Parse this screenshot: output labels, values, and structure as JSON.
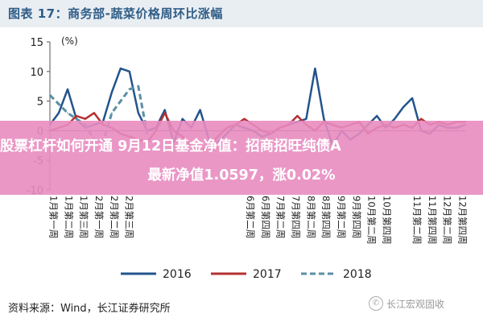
{
  "figure": {
    "title": "图表 17：商务部-蔬菜价格周环比涨幅",
    "unit": "(%)",
    "source": "资料来源：Wind，长江证券研究所",
    "watermark": "长江宏观固收"
  },
  "overlay": {
    "line1": "股票杠杆如何开通 9月12日基金净值：招商招旺纯债A",
    "line2": "最新净值1.0597，涨0.02%"
  },
  "colors": {
    "s2016": "#23548c",
    "s2017": "#b53031",
    "s2018": "#5a8fa4",
    "title": "#2f5d86",
    "overlay": "#e88cc0"
  },
  "chart_data": {
    "type": "line",
    "title": "商务部-蔬菜价格周环比涨幅",
    "ylabel": "(%)",
    "ylim": [
      -10,
      15
    ],
    "yticks": [
      15,
      10,
      5,
      0,
      -5,
      -10
    ],
    "legend_position": "bottom",
    "x_tick_labels": [
      "1月第一周",
      "1月第二周",
      "1月第三周",
      "2月第一周",
      "2月第二周",
      "2月第三周",
      "",
      "",
      "",
      "",
      "",
      "",
      "",
      "6月第二周",
      "6月第四周",
      "7月第二周",
      "7月第四周",
      "8月第二周",
      "8月第四周",
      "9月第二周",
      "9月第四周",
      "10月第二周",
      "10月第四周",
      "",
      "11月第二周",
      "11月第四周",
      "12月第二周",
      "12月第四周"
    ],
    "x_count": 48,
    "series": [
      {
        "name": "2016",
        "style": "solid",
        "values": [
          1.0,
          3.0,
          7.0,
          2.0,
          0.5,
          1.0,
          1.5,
          6.5,
          10.5,
          10.0,
          3.0,
          0.0,
          0.5,
          3.5,
          -2.0,
          2.0,
          0.5,
          3.5,
          -1.5,
          -2.0,
          -0.5,
          1.0,
          0.5,
          0.0,
          -1.0,
          -0.5,
          0.5,
          1.0,
          1.5,
          2.0,
          10.5,
          2.0,
          -2.5,
          0.0,
          -1.5,
          -0.5,
          1.0,
          2.5,
          0.5,
          2.0,
          4.0,
          5.5,
          0.0,
          -0.5,
          1.0,
          0.5,
          0.5,
          1.0
        ]
      },
      {
        "name": "2017",
        "style": "solid",
        "values": [
          0.0,
          0.5,
          1.0,
          2.5,
          2.0,
          3.0,
          1.0,
          0.5,
          -0.5,
          -1.0,
          -1.5,
          -2.0,
          0.0,
          3.0,
          0.0,
          -1.0,
          -2.5,
          -3.5,
          -2.5,
          -1.0,
          0.5,
          1.0,
          2.0,
          1.0,
          0.0,
          -0.5,
          0.5,
          1.0,
          2.5,
          1.0,
          0.0,
          1.5,
          1.0,
          0.5,
          1.0,
          1.5,
          -0.5,
          0.5,
          1.0,
          0.5,
          1.0,
          0.5,
          2.0,
          1.0,
          1.5,
          1.0,
          1.5,
          1.5
        ]
      },
      {
        "name": "2018",
        "style": "dashed",
        "values": [
          6.0,
          4.5,
          3.0,
          2.0,
          1.0,
          -1.5,
          -2.0,
          3.0,
          5.0,
          7.0,
          7.5,
          -0.5,
          null,
          null,
          null,
          null,
          null,
          null,
          null,
          null,
          null,
          null,
          null,
          null,
          null,
          null,
          null,
          null,
          null,
          null,
          null,
          null,
          null,
          null,
          null,
          null,
          null,
          null,
          null,
          null,
          null,
          null,
          null,
          null,
          null,
          null,
          null,
          null
        ]
      }
    ]
  }
}
